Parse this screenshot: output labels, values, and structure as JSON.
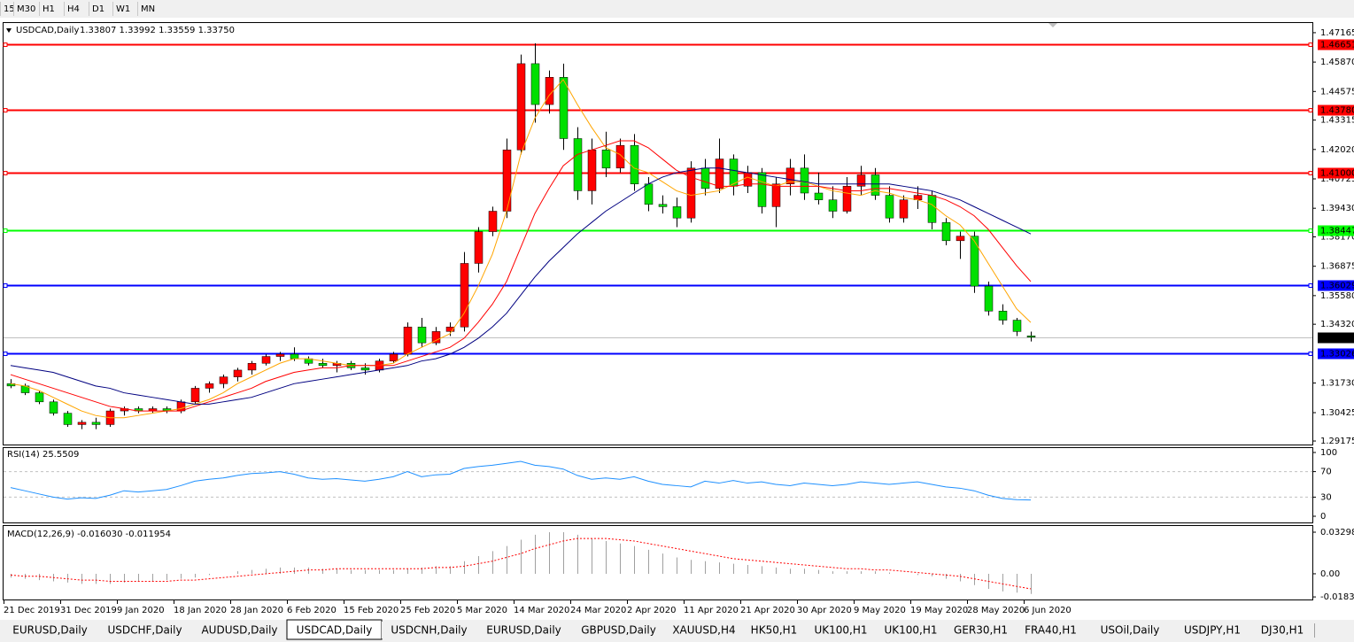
{
  "toolbar": {
    "timeframes": [
      "15",
      "M30",
      "H1",
      "H4",
      "D1",
      "W1",
      "MN"
    ]
  },
  "chart_data": [
    {
      "type": "candlestick",
      "title": "USDCAD,Daily",
      "quote": "1.33807 1.33992 1.33559 1.33750",
      "categories": [
        "21 Dec 2019",
        null,
        null,
        null,
        "31 Dec 2019",
        null,
        null,
        null,
        "9 Jan 2020",
        null,
        null,
        null,
        "18 Jan 2020",
        null,
        null,
        null,
        "28 Jan 2020",
        null,
        null,
        null,
        "6 Feb 2020",
        null,
        null,
        null,
        "15 Feb 2020",
        null,
        null,
        null,
        "25 Feb 2020",
        null,
        null,
        null,
        "5 Mar 2020",
        null,
        null,
        null,
        "14 Mar 2020",
        null,
        null,
        null,
        "24 Mar 2020",
        null,
        null,
        null,
        "2 Apr 2020",
        null,
        null,
        null,
        "11 Apr 2020",
        null,
        null,
        null,
        "21 Apr 2020",
        null,
        null,
        null,
        "30 Apr 2020",
        null,
        null,
        null,
        "9 May 2020",
        null,
        null,
        null,
        "19 May 2020",
        null,
        null,
        null,
        "28 May 2020",
        null,
        null,
        null,
        "6 Jun 2020"
      ],
      "open": [
        1.317,
        1.316,
        1.313,
        1.309,
        1.304,
        1.299,
        1.3,
        1.299,
        1.305,
        1.306,
        1.305,
        1.306,
        1.305,
        1.309,
        1.315,
        1.317,
        1.32,
        1.323,
        1.326,
        1.329,
        1.33,
        1.328,
        1.326,
        1.325,
        1.326,
        1.324,
        1.323,
        1.327,
        1.33,
        1.342,
        1.335,
        1.34,
        1.342,
        1.37,
        1.384,
        1.393,
        1.42,
        1.458,
        1.44,
        1.452,
        1.425,
        1.402,
        1.42,
        1.412,
        1.422,
        1.405,
        1.396,
        1.395,
        1.39,
        1.412,
        1.403,
        1.416,
        1.404,
        1.41,
        1.395,
        1.405,
        1.412,
        1.401,
        1.398,
        1.393,
        1.404,
        1.409,
        1.4,
        1.39,
        1.398,
        1.4,
        1.388,
        1.38,
        1.382,
        1.36,
        1.349,
        1.345,
        1.33807
      ],
      "high": [
        1.319,
        1.317,
        1.314,
        1.31,
        1.305,
        1.301,
        1.302,
        1.306,
        1.307,
        1.307,
        1.307,
        1.307,
        1.31,
        1.316,
        1.318,
        1.321,
        1.324,
        1.327,
        1.33,
        1.331,
        1.333,
        1.329,
        1.328,
        1.327,
        1.327,
        1.326,
        1.328,
        1.331,
        1.344,
        1.346,
        1.342,
        1.344,
        1.375,
        1.386,
        1.395,
        1.425,
        1.462,
        1.467,
        1.455,
        1.458,
        1.43,
        1.425,
        1.428,
        1.425,
        1.427,
        1.408,
        1.4,
        1.399,
        1.415,
        1.416,
        1.425,
        1.418,
        1.413,
        1.412,
        1.408,
        1.416,
        1.418,
        1.41,
        1.404,
        1.408,
        1.413,
        1.412,
        1.404,
        1.4,
        1.404,
        1.402,
        1.39,
        1.384,
        1.384,
        1.362,
        1.352,
        1.346,
        1.33992
      ],
      "low": [
        1.315,
        1.312,
        1.308,
        1.303,
        1.298,
        1.297,
        1.297,
        1.298,
        1.303,
        1.304,
        1.304,
        1.304,
        1.304,
        1.308,
        1.313,
        1.315,
        1.318,
        1.321,
        1.325,
        1.327,
        1.327,
        1.325,
        1.324,
        1.322,
        1.323,
        1.321,
        1.322,
        1.326,
        1.329,
        1.333,
        1.334,
        1.338,
        1.34,
        1.366,
        1.382,
        1.39,
        1.418,
        1.432,
        1.436,
        1.42,
        1.398,
        1.396,
        1.408,
        1.41,
        1.402,
        1.393,
        1.392,
        1.386,
        1.388,
        1.4,
        1.401,
        1.4,
        1.401,
        1.392,
        1.386,
        1.4,
        1.398,
        1.396,
        1.39,
        1.392,
        1.4,
        1.398,
        1.388,
        1.388,
        1.394,
        1.385,
        1.378,
        1.372,
        1.357,
        1.347,
        1.343,
        1.338,
        1.33559
      ],
      "close": [
        1.316,
        1.313,
        1.309,
        1.304,
        1.299,
        1.3,
        1.299,
        1.305,
        1.306,
        1.305,
        1.306,
        1.305,
        1.309,
        1.315,
        1.317,
        1.32,
        1.323,
        1.326,
        1.329,
        1.33,
        1.328,
        1.326,
        1.325,
        1.326,
        1.324,
        1.323,
        1.327,
        1.33,
        1.342,
        1.335,
        1.34,
        1.342,
        1.37,
        1.384,
        1.393,
        1.42,
        1.458,
        1.44,
        1.452,
        1.425,
        1.402,
        1.42,
        1.412,
        1.422,
        1.405,
        1.396,
        1.395,
        1.39,
        1.412,
        1.403,
        1.416,
        1.404,
        1.41,
        1.395,
        1.405,
        1.412,
        1.401,
        1.398,
        1.393,
        1.404,
        1.409,
        1.4,
        1.39,
        1.398,
        1.4,
        1.388,
        1.38,
        1.382,
        1.36,
        1.349,
        1.345,
        1.34,
        1.3375
      ],
      "bull_color": "#ff0000",
      "bear_color": "#00e000",
      "indicators": [
        {
          "color": "#ffa500",
          "values": [
            1.317,
            1.316,
            1.314,
            1.311,
            1.308,
            1.305,
            1.303,
            1.302,
            1.302,
            1.303,
            1.304,
            1.305,
            1.306,
            1.308,
            1.31,
            1.313,
            1.317,
            1.32,
            1.323,
            1.326,
            1.328,
            1.328,
            1.327,
            1.326,
            1.325,
            1.325,
            1.325,
            1.326,
            1.33,
            1.333,
            1.336,
            1.339,
            1.348,
            1.36,
            1.374,
            1.393,
            1.418,
            1.434,
            1.444,
            1.451,
            1.44,
            1.43,
            1.421,
            1.418,
            1.412,
            1.41,
            1.406,
            1.402,
            1.4,
            1.401,
            1.402,
            1.405,
            1.408,
            1.406,
            1.404,
            1.406,
            1.406,
            1.404,
            1.402,
            1.401,
            1.4,
            1.402,
            1.401,
            1.399,
            1.398,
            1.396,
            1.391,
            1.387,
            1.38,
            1.37,
            1.36,
            1.35,
            1.344
          ]
        },
        {
          "color": "#ff0000",
          "values": [
            1.321,
            1.319,
            1.317,
            1.315,
            1.313,
            1.311,
            1.309,
            1.307,
            1.306,
            1.305,
            1.305,
            1.305,
            1.305,
            1.307,
            1.309,
            1.311,
            1.313,
            1.315,
            1.318,
            1.32,
            1.322,
            1.323,
            1.324,
            1.324,
            1.325,
            1.325,
            1.325,
            1.325,
            1.327,
            1.329,
            1.331,
            1.333,
            1.337,
            1.344,
            1.352,
            1.362,
            1.377,
            1.392,
            1.403,
            1.413,
            1.418,
            1.42,
            1.422,
            1.424,
            1.424,
            1.421,
            1.416,
            1.411,
            1.408,
            1.406,
            1.404,
            1.404,
            1.405,
            1.405,
            1.404,
            1.404,
            1.404,
            1.404,
            1.403,
            1.402,
            1.402,
            1.403,
            1.403,
            1.402,
            1.401,
            1.4,
            1.398,
            1.395,
            1.391,
            1.385,
            1.377,
            1.369,
            1.362
          ]
        },
        {
          "color": "#000080",
          "values": [
            1.325,
            1.324,
            1.323,
            1.322,
            1.32,
            1.318,
            1.316,
            1.315,
            1.313,
            1.312,
            1.311,
            1.31,
            1.309,
            1.308,
            1.308,
            1.309,
            1.31,
            1.311,
            1.313,
            1.315,
            1.317,
            1.318,
            1.319,
            1.32,
            1.321,
            1.322,
            1.323,
            1.324,
            1.325,
            1.327,
            1.328,
            1.33,
            1.333,
            1.337,
            1.342,
            1.348,
            1.356,
            1.364,
            1.371,
            1.377,
            1.383,
            1.388,
            1.393,
            1.397,
            1.401,
            1.405,
            1.408,
            1.41,
            1.411,
            1.412,
            1.412,
            1.411,
            1.41,
            1.409,
            1.408,
            1.407,
            1.406,
            1.405,
            1.405,
            1.405,
            1.405,
            1.405,
            1.405,
            1.404,
            1.403,
            1.402,
            1.4,
            1.398,
            1.395,
            1.392,
            1.389,
            1.386,
            1.383
          ]
        }
      ],
      "levels": [
        {
          "value": 1.46651,
          "label": "1.46651",
          "color": "#ff0000"
        },
        {
          "value": 1.4378,
          "label": "1.43780",
          "color": "#ff0000"
        },
        {
          "value": 1.41,
          "label": "1.41000",
          "color": "#ff0000"
        },
        {
          "value": 1.38447,
          "label": "1.38447",
          "color": "#00ff00"
        },
        {
          "value": 1.36029,
          "label": "1.36029",
          "color": "#0000ff"
        },
        {
          "value": 1.33026,
          "label": "1.33026",
          "color": "#0000ff"
        }
      ],
      "current": {
        "value": 1.3375,
        "label": "1.33750"
      },
      "ylim": [
        1.2902,
        1.4763
      ],
      "yticks": [
        {
          "value": 1.47165,
          "label": "1.47165"
        },
        {
          "value": 1.4587,
          "label": "1.45870"
        },
        {
          "value": 1.44575,
          "label": "1.44575"
        },
        {
          "value": 1.43315,
          "label": "1.43315"
        },
        {
          "value": 1.4202,
          "label": "1.42020"
        },
        {
          "value": 1.40725,
          "label": "1.40725"
        },
        {
          "value": 1.3943,
          "label": "1.39430"
        },
        {
          "value": 1.3817,
          "label": "1.38170"
        },
        {
          "value": 1.36875,
          "label": "1.36875"
        },
        {
          "value": 1.3558,
          "label": "1.35580"
        },
        {
          "value": 1.3432,
          "label": "1.34320"
        },
        {
          "value": 1.3173,
          "label": "1.31730"
        },
        {
          "value": 1.30425,
          "label": "1.30425"
        },
        {
          "value": 1.29175,
          "label": "1.29175"
        }
      ]
    },
    {
      "type": "line",
      "title": "RSI(14) 25.5509",
      "color": "#1e90ff",
      "values": [
        45,
        40,
        35,
        30,
        27,
        29,
        28,
        33,
        40,
        38,
        40,
        42,
        48,
        55,
        58,
        60,
        64,
        67,
        68,
        70,
        66,
        60,
        58,
        59,
        57,
        55,
        58,
        62,
        70,
        62,
        65,
        66,
        75,
        78,
        80,
        83,
        86,
        80,
        78,
        74,
        64,
        58,
        60,
        58,
        62,
        55,
        50,
        48,
        46,
        55,
        52,
        56,
        52,
        54,
        50,
        48,
        52,
        50,
        48,
        50,
        54,
        52,
        50,
        52,
        54,
        50,
        46,
        44,
        40,
        33,
        28,
        26,
        25.5509
      ],
      "levels": [
        30,
        70
      ],
      "ylim": [
        -9.7,
        108.3
      ],
      "yticks": [
        0,
        30,
        70,
        100
      ]
    },
    {
      "type": "macd",
      "title": "MACD(12,26,9) -0.016030 -0.011954",
      "histogram_color": "#a0a0a0",
      "signal_color": "#ff0000",
      "histogram": [
        -0.003,
        -0.004,
        -0.005,
        -0.006,
        -0.007,
        -0.008,
        -0.008,
        -0.008,
        -0.007,
        -0.006,
        -0.006,
        -0.005,
        -0.004,
        -0.003,
        -0.001,
        0.0,
        0.002,
        0.003,
        0.004,
        0.005,
        0.005,
        0.005,
        0.004,
        0.004,
        0.003,
        0.003,
        0.003,
        0.003,
        0.004,
        0.005,
        0.006,
        0.006,
        0.01,
        0.014,
        0.018,
        0.022,
        0.027,
        0.031,
        0.033,
        0.033,
        0.031,
        0.028,
        0.026,
        0.024,
        0.022,
        0.019,
        0.016,
        0.013,
        0.011,
        0.01,
        0.009,
        0.008,
        0.007,
        0.006,
        0.005,
        0.004,
        0.004,
        0.003,
        0.002,
        0.002,
        0.002,
        0.002,
        0.001,
        0.0,
        -0.001,
        -0.002,
        -0.004,
        -0.006,
        -0.009,
        -0.012,
        -0.014,
        -0.015,
        -0.01603
      ],
      "signal": [
        -0.001,
        -0.002,
        -0.002,
        -0.003,
        -0.004,
        -0.005,
        -0.005,
        -0.006,
        -0.006,
        -0.006,
        -0.006,
        -0.006,
        -0.005,
        -0.005,
        -0.004,
        -0.003,
        -0.002,
        -0.001,
        0.0,
        0.001,
        0.002,
        0.003,
        0.003,
        0.004,
        0.004,
        0.004,
        0.004,
        0.004,
        0.004,
        0.004,
        0.005,
        0.005,
        0.006,
        0.008,
        0.01,
        0.013,
        0.016,
        0.02,
        0.023,
        0.026,
        0.028,
        0.028,
        0.028,
        0.027,
        0.026,
        0.024,
        0.022,
        0.02,
        0.018,
        0.016,
        0.014,
        0.012,
        0.011,
        0.01,
        0.009,
        0.008,
        0.007,
        0.006,
        0.005,
        0.004,
        0.004,
        0.003,
        0.003,
        0.002,
        0.001,
        0.0,
        -0.001,
        -0.002,
        -0.004,
        -0.006,
        -0.008,
        -0.01,
        -0.011954
      ],
      "ylim": [
        -0.0204,
        0.0386
      ],
      "yticks": [
        {
          "value": 0.032982,
          "label": "0.032982"
        },
        {
          "value": 0,
          "label": "0.00"
        },
        {
          "value": -0.01836,
          "label": "-0.01836"
        }
      ]
    }
  ],
  "tabs": {
    "items": [
      "EURUSD,Daily",
      "USDCHF,Daily",
      "AUDUSD,Daily",
      "USDCAD,Daily",
      "USDCNH,Daily",
      "EURUSD,Daily",
      "GBPUSD,Daily",
      "XAUUSD,H4",
      "HK50,H1",
      "UK100,H1",
      "UK100,H1",
      "GER30,H1",
      "FRA40,H1",
      "USOil,Daily",
      "USDJPY,H1",
      "DJ30,H1"
    ],
    "active": 3
  }
}
